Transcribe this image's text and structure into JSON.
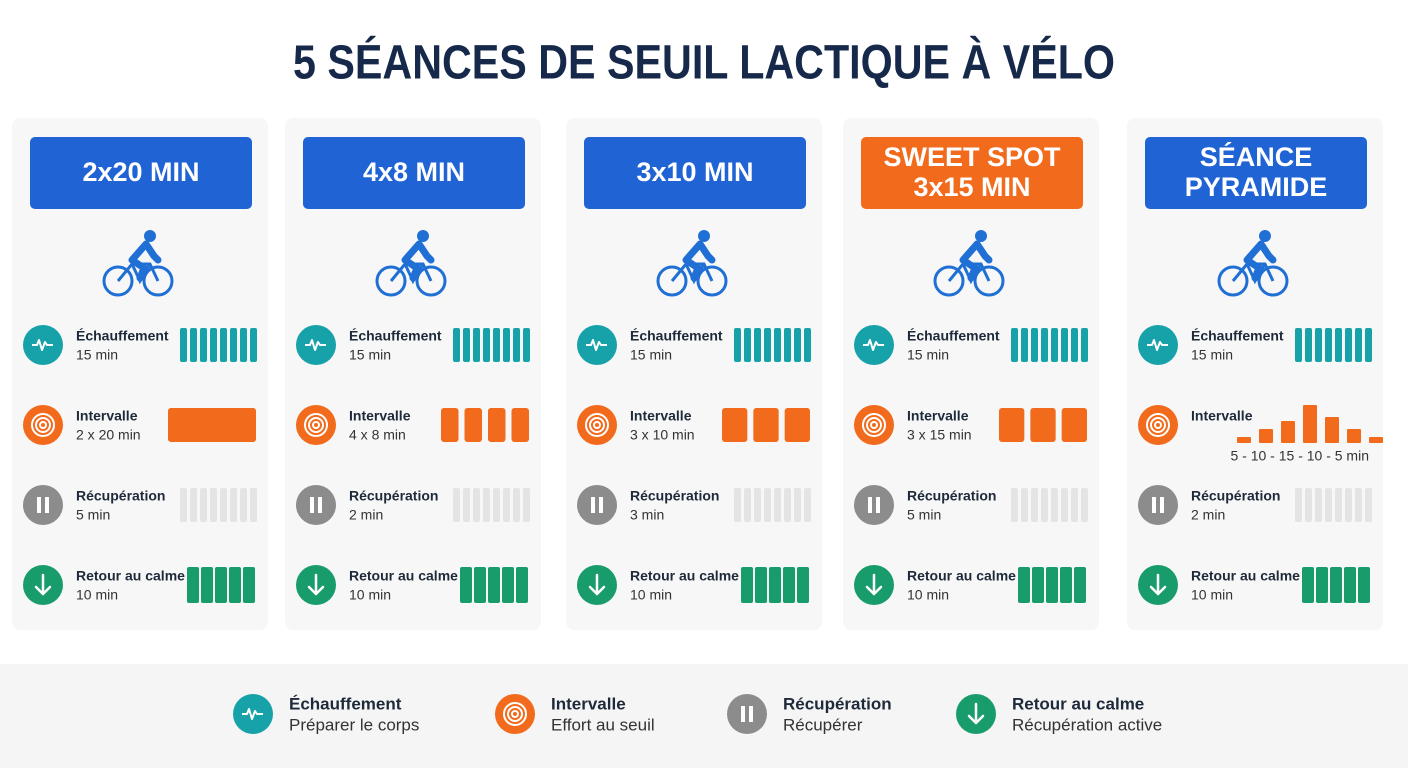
{
  "title": "5 SÉANCES DE SEUIL LACTIQUE À VÉLO",
  "cards": [
    {
      "title": [
        "2x20 MIN"
      ],
      "color": "#1f63d4",
      "rows": [
        {
          "label": "Échauffement",
          "detail": "15 min"
        },
        {
          "label": "Intervalle",
          "detail": "2 x 20 min"
        },
        {
          "label": "Récupération",
          "detail": "5 min"
        },
        {
          "label": "Retour au calme",
          "detail": "10 min"
        }
      ]
    },
    {
      "title": [
        "4x8 MIN"
      ],
      "color": "#1f63d4",
      "rows": [
        {
          "label": "Échauffement",
          "detail": "15 min"
        },
        {
          "label": "Intervalle",
          "detail": "4 x 8 min"
        },
        {
          "label": "Récupération",
          "detail": "2 min"
        },
        {
          "label": "Retour au calme",
          "detail": "10 min"
        }
      ]
    },
    {
      "title": [
        "3x10 MIN"
      ],
      "color": "#1f63d4",
      "rows": [
        {
          "label": "Échauffement",
          "detail": "15 min"
        },
        {
          "label": "Intervalle",
          "detail": "3 x 10 min"
        },
        {
          "label": "Récupération",
          "detail": "3 min"
        },
        {
          "label": "Retour au calme",
          "detail": "10 min"
        }
      ]
    },
    {
      "title": [
        "SWEET SPOT",
        "3x15 MIN"
      ],
      "color": "#f26a1b",
      "rows": [
        {
          "label": "Échauffement",
          "detail": "15 min"
        },
        {
          "label": "Intervalle",
          "detail": "3 x 15 min"
        },
        {
          "label": "Récupération",
          "detail": "5 min"
        },
        {
          "label": "Retour au calme",
          "detail": "10 min"
        }
      ]
    },
    {
      "title": [
        "SÉANCE",
        "PYRAMIDE"
      ],
      "color": "#1f63d4",
      "rows": [
        {
          "label": "Échauffement",
          "detail": "15 min"
        },
        {
          "label": "Intervalle",
          "scale": "5 - 10 - 15 - 10 - 5 min"
        },
        {
          "label": "Récupération",
          "detail": "2 min"
        },
        {
          "label": "Retour au calme",
          "detail": "10 min"
        }
      ]
    }
  ],
  "legend": [
    {
      "label": "Échauffement",
      "description": "Préparer le corps"
    },
    {
      "label": "Intervalle",
      "description": "Effort au seuil"
    },
    {
      "label": "Récupération",
      "description": "Récupérer"
    },
    {
      "label": "Retour au calme",
      "description": "Récupération active"
    }
  ]
}
